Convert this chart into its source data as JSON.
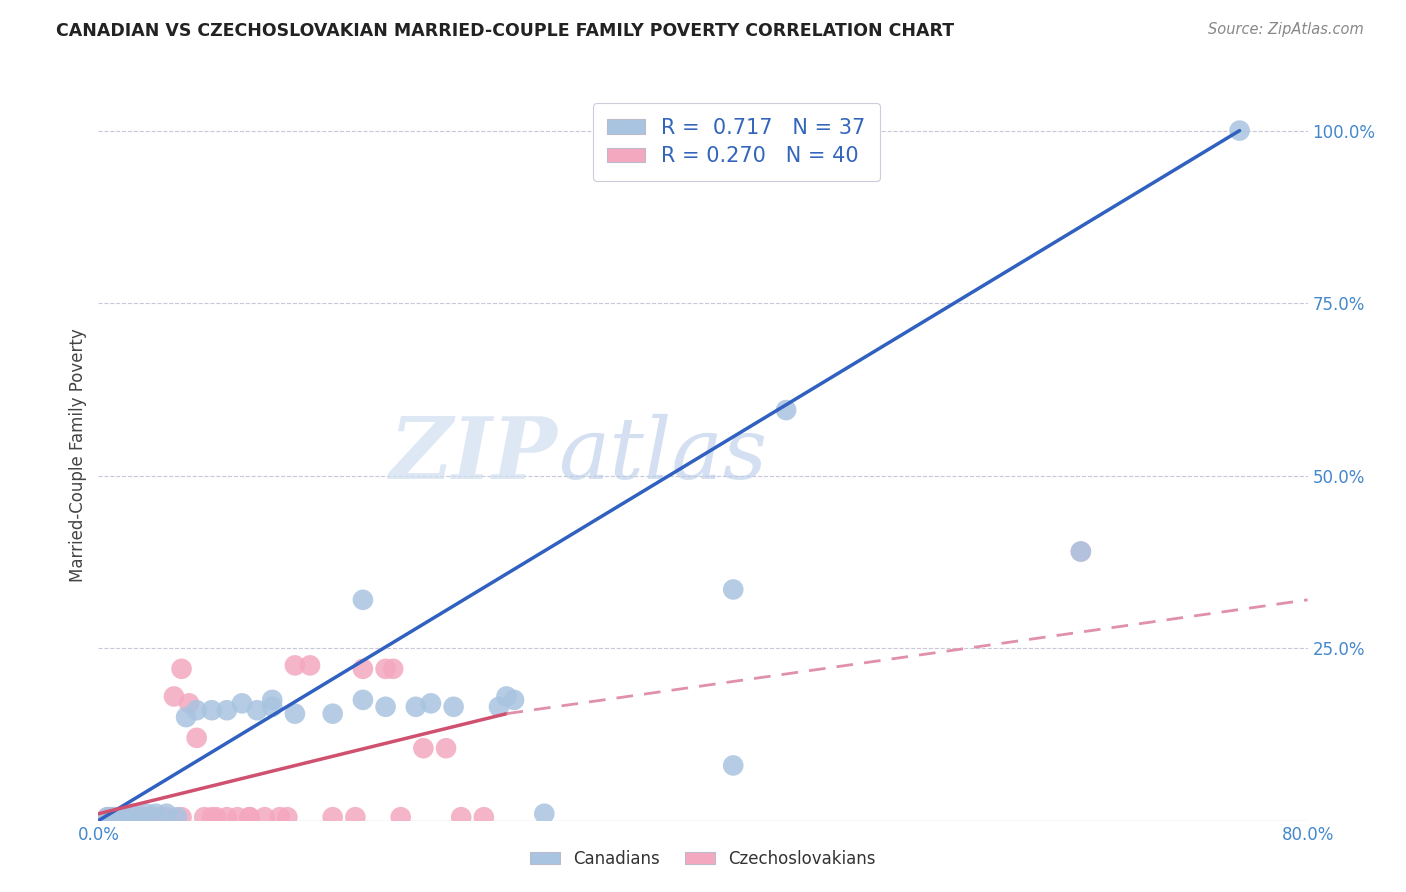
{
  "title": "CANADIAN VS CZECHOSLOVAKIAN MARRIED-COUPLE FAMILY POVERTY CORRELATION CHART",
  "source": "Source: ZipAtlas.com",
  "ylabel": "Married-Couple Family Poverty",
  "xlim": [
    0,
    0.8
  ],
  "ylim": [
    0,
    1.06
  ],
  "canadians_color": "#a8c4e0",
  "czechoslovakians_color": "#f4a8c0",
  "canadians_line_color": "#3060c0",
  "czechoslovakians_line_solid_color": "#d05070",
  "czechoslovakians_line_dashed_color": "#e090a8",
  "canadians_R": 0.717,
  "canadians_N": 37,
  "czechoslovakians_R": 0.27,
  "czechoslovakians_N": 40,
  "watermark_zip": "ZIP",
  "watermark_atlas": "atlas",
  "can_line_x0": 0.0,
  "can_line_y0": 0.0,
  "can_line_x1": 0.755,
  "can_line_y1": 1.0,
  "cze_line_solid_x0": 0.0,
  "cze_line_solid_y0": 0.01,
  "cze_line_solid_x1": 0.27,
  "cze_line_solid_y1": 0.155,
  "cze_line_dashed_x0": 0.27,
  "cze_line_dashed_y0": 0.155,
  "cze_line_dashed_x1": 0.8,
  "cze_line_dashed_y1": 0.32,
  "canadians_scatter_x": [
    0.295,
    0.006,
    0.01,
    0.015,
    0.008,
    0.012,
    0.018,
    0.022,
    0.028,
    0.032,
    0.038,
    0.045,
    0.052,
    0.058,
    0.065,
    0.075,
    0.085,
    0.095,
    0.105,
    0.115,
    0.13,
    0.155,
    0.175,
    0.19,
    0.21,
    0.235,
    0.265,
    0.27,
    0.175,
    0.22,
    0.275,
    0.42,
    0.455,
    0.65,
    0.755,
    0.42,
    0.115
  ],
  "canadians_scatter_y": [
    0.01,
    0.005,
    0.005,
    0.005,
    0.005,
    0.005,
    0.005,
    0.01,
    0.005,
    0.01,
    0.01,
    0.01,
    0.005,
    0.15,
    0.16,
    0.16,
    0.16,
    0.17,
    0.16,
    0.165,
    0.155,
    0.155,
    0.32,
    0.165,
    0.165,
    0.165,
    0.165,
    0.18,
    0.175,
    0.17,
    0.175,
    0.335,
    0.595,
    0.39,
    1.0,
    0.08,
    0.175
  ],
  "czechoslovakians_scatter_x": [
    0.006,
    0.009,
    0.012,
    0.016,
    0.019,
    0.022,
    0.025,
    0.028,
    0.032,
    0.036,
    0.04,
    0.045,
    0.05,
    0.055,
    0.06,
    0.065,
    0.07,
    0.078,
    0.085,
    0.092,
    0.1,
    0.11,
    0.12,
    0.13,
    0.14,
    0.155,
    0.17,
    0.19,
    0.2,
    0.215,
    0.23,
    0.24,
    0.255,
    0.175,
    0.195,
    0.055,
    0.075,
    0.1,
    0.125,
    0.65
  ],
  "czechoslovakians_scatter_y": [
    0.005,
    0.005,
    0.005,
    0.005,
    0.005,
    0.005,
    0.01,
    0.005,
    0.005,
    0.005,
    0.005,
    0.005,
    0.18,
    0.22,
    0.17,
    0.12,
    0.005,
    0.005,
    0.005,
    0.005,
    0.005,
    0.005,
    0.005,
    0.225,
    0.225,
    0.005,
    0.005,
    0.22,
    0.005,
    0.105,
    0.105,
    0.005,
    0.005,
    0.22,
    0.22,
    0.005,
    0.005,
    0.005,
    0.005,
    0.39
  ]
}
